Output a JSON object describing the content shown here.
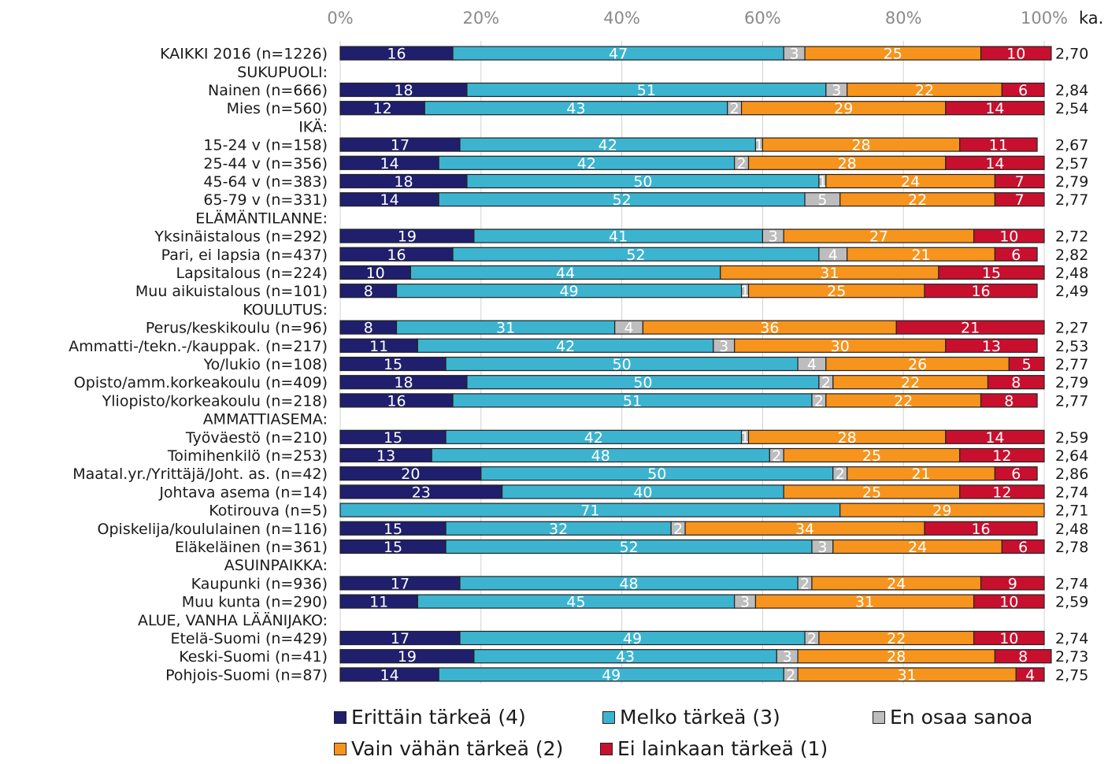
{
  "chart_data": {
    "type": "bar",
    "stacked": true,
    "orientation": "horizontal",
    "x_ticks": [
      "0%",
      "20%",
      "40%",
      "60%",
      "80%",
      "100%"
    ],
    "avg_header": "ka.",
    "xlim": [
      0,
      100
    ],
    "grid": true,
    "legend_position": "bottom",
    "series": [
      {
        "name": "Erittäin tärkeä (4)",
        "color": "#1f1f6e"
      },
      {
        "name": "Melko tärkeä (3)",
        "color": "#3cb4d0"
      },
      {
        "name": "En osaa sanoa",
        "color": "#bdbdbd"
      },
      {
        "name": "Vain vähän tärkeä (2)",
        "color": "#f7941d"
      },
      {
        "name": "Ei lainkaan tärkeä (1)",
        "color": "#c8102e"
      }
    ],
    "rows": [
      {
        "label": "KAIKKI 2016 (n=1226)",
        "values": [
          16,
          47,
          3,
          25,
          10
        ],
        "avg": "2,70"
      },
      {
        "label": "SUKUPUOLI:",
        "header": true
      },
      {
        "label": "Nainen (n=666)",
        "values": [
          18,
          51,
          3,
          22,
          6
        ],
        "avg": "2,84"
      },
      {
        "label": "Mies (n=560)",
        "values": [
          12,
          43,
          2,
          29,
          14
        ],
        "avg": "2,54"
      },
      {
        "label": "IKÄ:",
        "header": true
      },
      {
        "label": "15-24 v (n=158)",
        "values": [
          17,
          42,
          1,
          28,
          11
        ],
        "avg": "2,67"
      },
      {
        "label": "25-44 v (n=356)",
        "values": [
          14,
          42,
          2,
          28,
          14
        ],
        "avg": "2,57"
      },
      {
        "label": "45-64 v (n=383)",
        "values": [
          18,
          50,
          1,
          24,
          7
        ],
        "avg": "2,79"
      },
      {
        "label": "65-79 v (n=331)",
        "values": [
          14,
          52,
          5,
          22,
          7
        ],
        "avg": "2,77"
      },
      {
        "label": "ELÄMÄNTILANNE:",
        "header": true
      },
      {
        "label": "Yksinäistalous (n=292)",
        "values": [
          19,
          41,
          3,
          27,
          10
        ],
        "avg": "2,72"
      },
      {
        "label": "Pari, ei lapsia (n=437)",
        "values": [
          16,
          52,
          4,
          21,
          6
        ],
        "avg": "2,82"
      },
      {
        "label": "Lapsitalous (n=224)",
        "values": [
          10,
          44,
          0,
          31,
          15
        ],
        "avg": "2,48"
      },
      {
        "label": "Muu aikuistalous (n=101)",
        "values": [
          8,
          49,
          1,
          25,
          16
        ],
        "avg": "2,49"
      },
      {
        "label": "KOULUTUS:",
        "header": true
      },
      {
        "label": "Perus/keskikoulu (n=96)",
        "values": [
          8,
          31,
          4,
          36,
          21
        ],
        "avg": "2,27"
      },
      {
        "label": "Ammatti-/tekn.-/kauppak. (n=217)",
        "values": [
          11,
          42,
          3,
          30,
          13
        ],
        "avg": "2,53"
      },
      {
        "label": "Yo/lukio (n=108)",
        "values": [
          15,
          50,
          4,
          26,
          5
        ],
        "avg": "2,77"
      },
      {
        "label": "Opisto/amm.korkeakoulu (n=409)",
        "values": [
          18,
          50,
          2,
          22,
          8
        ],
        "avg": "2,79"
      },
      {
        "label": "Yliopisto/korkeakoulu (n=218)",
        "values": [
          16,
          51,
          2,
          22,
          8
        ],
        "avg": "2,77"
      },
      {
        "label": "AMMATTIASEMA:",
        "header": true
      },
      {
        "label": "Työväestö (n=210)",
        "values": [
          15,
          42,
          1,
          28,
          14
        ],
        "avg": "2,59"
      },
      {
        "label": "Toimihenkilö (n=253)",
        "values": [
          13,
          48,
          2,
          25,
          12
        ],
        "avg": "2,64"
      },
      {
        "label": "Maatal.yr./Yrittäjä/Joht. as. (n=42)",
        "values": [
          20,
          50,
          2,
          21,
          6
        ],
        "avg": "2,86"
      },
      {
        "label": "Johtava asema (n=14)",
        "values": [
          23,
          40,
          0,
          25,
          12
        ],
        "avg": "2,74"
      },
      {
        "label": "Kotirouva (n=5)",
        "values": [
          0,
          71,
          0,
          29,
          0
        ],
        "avg": "2,71"
      },
      {
        "label": "Opiskelija/koululainen (n=116)",
        "values": [
          15,
          32,
          2,
          34,
          16
        ],
        "avg": "2,48"
      },
      {
        "label": "Eläkeläinen (n=361)",
        "values": [
          15,
          52,
          3,
          24,
          6
        ],
        "avg": "2,78"
      },
      {
        "label": "ASUINPAIKKA:",
        "header": true
      },
      {
        "label": "Kaupunki (n=936)",
        "values": [
          17,
          48,
          2,
          24,
          9
        ],
        "avg": "2,74"
      },
      {
        "label": "Muu kunta (n=290)",
        "values": [
          11,
          45,
          3,
          31,
          10
        ],
        "avg": "2,59"
      },
      {
        "label": "ALUE, VANHA LÄÄNIJAKO:",
        "header": true
      },
      {
        "label": "Etelä-Suomi (n=429)",
        "values": [
          17,
          49,
          2,
          22,
          10
        ],
        "avg": "2,74"
      },
      {
        "label": "Keski-Suomi (n=41)",
        "values": [
          19,
          43,
          3,
          28,
          8
        ],
        "avg": "2,73"
      },
      {
        "label": "Pohjois-Suomi (n=87)",
        "values": [
          14,
          49,
          2,
          31,
          4
        ],
        "avg": "2,75"
      }
    ]
  }
}
